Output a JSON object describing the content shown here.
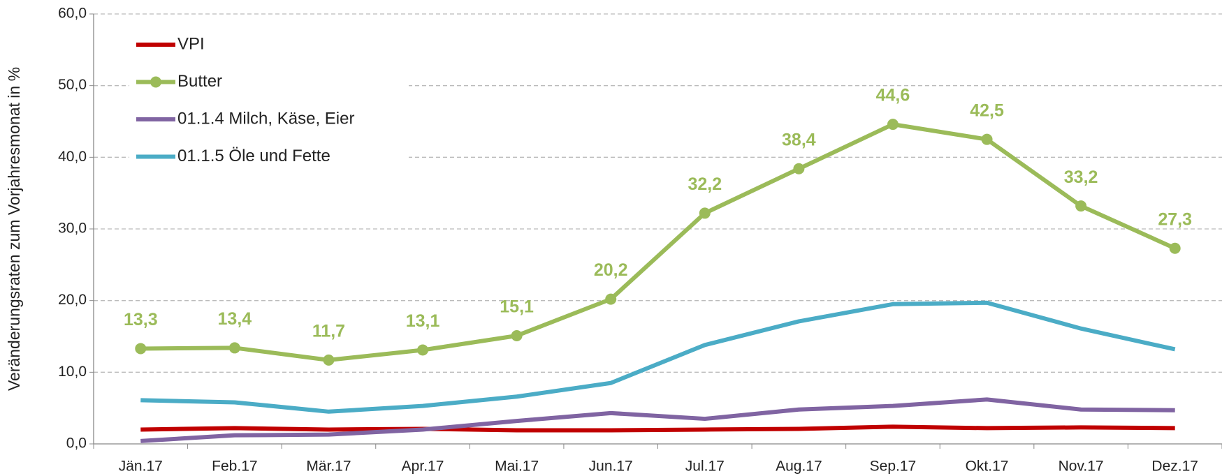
{
  "chart_data": {
    "type": "line",
    "y_label": "Veränderungsraten zum Vorjahresmonat in %",
    "categories": [
      "Jän.17",
      "Feb.17",
      "Mär.17",
      "Apr.17",
      "Mai.17",
      "Jun.17",
      "Jul.17",
      "Aug.17",
      "Sep.17",
      "Okt.17",
      "Nov.17",
      "Dez.17"
    ],
    "series": [
      {
        "name": "VPI",
        "color": "#c00000",
        "values": [
          2.0,
          2.2,
          2.0,
          2.1,
          1.9,
          1.9,
          2.0,
          2.1,
          2.4,
          2.2,
          2.3,
          2.2
        ]
      },
      {
        "name": "Butter",
        "color": "#9bbb59",
        "markers": true,
        "values": [
          13.3,
          13.4,
          11.7,
          13.1,
          15.1,
          20.2,
          32.2,
          38.4,
          44.6,
          42.5,
          33.2,
          27.3
        ],
        "value_labels": [
          "13,3",
          "13,4",
          "11,7",
          "13,1",
          "15,1",
          "20,2",
          "32,2",
          "38,4",
          "44,6",
          "42,5",
          "33,2",
          "27,3"
        ]
      },
      {
        "name": "01.1.4 Milch, Käse, Eier",
        "color": "#8064a2",
        "values": [
          0.4,
          1.2,
          1.3,
          2.0,
          3.2,
          4.3,
          3.5,
          4.8,
          5.3,
          6.2,
          4.8,
          4.7
        ]
      },
      {
        "name": "01.1.5 Öle und Fette",
        "color": "#4bacc6",
        "values": [
          6.1,
          5.8,
          4.5,
          5.3,
          6.6,
          8.5,
          13.8,
          17.1,
          19.5,
          19.7,
          16.1,
          13.2
        ]
      }
    ],
    "ylim": [
      0,
      60
    ],
    "yticks": [
      {
        "value": 0,
        "label": "0,0"
      },
      {
        "value": 10,
        "label": "10,0"
      },
      {
        "value": 20,
        "label": "20,0"
      },
      {
        "value": 30,
        "label": "30,0"
      },
      {
        "value": 40,
        "label": "40,0"
      },
      {
        "value": 50,
        "label": "50,0"
      },
      {
        "value": 60,
        "label": "60,0"
      }
    ],
    "grid": true,
    "legend": "upper left"
  }
}
